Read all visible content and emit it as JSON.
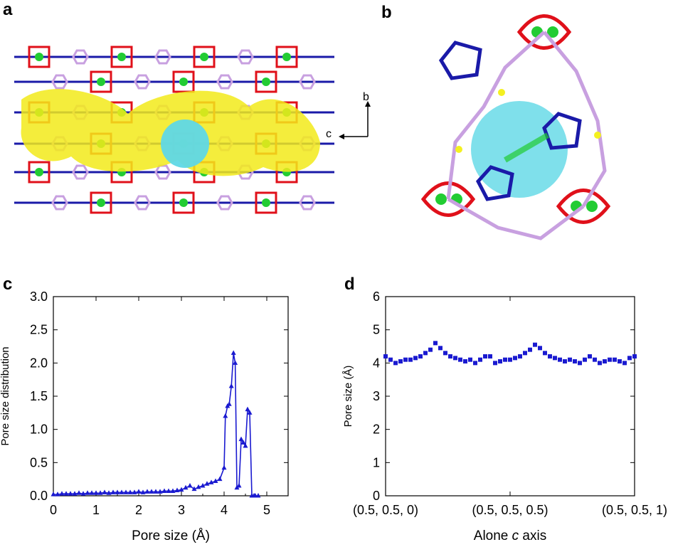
{
  "panels": {
    "a": {
      "label": "a",
      "axes": {
        "b": "b",
        "c": "c"
      }
    },
    "b": {
      "label": "b"
    },
    "c": {
      "label": "c"
    },
    "d": {
      "label": "d"
    }
  },
  "colors": {
    "series": "#1a1ad0",
    "channel_yellow": "#f2ea1a",
    "pore_sphere": "#5fd8e6",
    "oxygen": "#e0101a",
    "metal": "#22cc33",
    "nitrogen": "#1a1aa8",
    "carbon": "#c8a0e0",
    "hydrogen": "#f4f020"
  },
  "chart_data": [
    {
      "panel": "c",
      "type": "line",
      "xlabel": "Pore size (Å)",
      "ylabel": "Pore size distribution",
      "xlim": [
        0,
        5.5
      ],
      "ylim": [
        0,
        3.0
      ],
      "xticks": [
        "0",
        "1",
        "2",
        "3",
        "4",
        "5"
      ],
      "yticks": [
        "0.0",
        "0.5",
        "1.0",
        "1.5",
        "2.0",
        "2.5",
        "3.0"
      ],
      "x": [
        0.0,
        0.1,
        0.2,
        0.3,
        0.4,
        0.5,
        0.6,
        0.7,
        0.8,
        0.9,
        1.0,
        1.1,
        1.2,
        1.3,
        1.4,
        1.5,
        1.6,
        1.7,
        1.8,
        1.9,
        2.0,
        2.1,
        2.2,
        2.3,
        2.4,
        2.5,
        2.6,
        2.7,
        2.8,
        2.9,
        3.0,
        3.1,
        3.2,
        3.3,
        3.4,
        3.5,
        3.6,
        3.7,
        3.8,
        3.9,
        4.0,
        4.03,
        4.08,
        4.12,
        4.17,
        4.22,
        4.26,
        4.3,
        4.35,
        4.4,
        4.45,
        4.5,
        4.55,
        4.6,
        4.65,
        4.7,
        4.73,
        4.8
      ],
      "y": [
        0.02,
        0.02,
        0.03,
        0.03,
        0.03,
        0.03,
        0.04,
        0.03,
        0.04,
        0.04,
        0.04,
        0.04,
        0.05,
        0.04,
        0.05,
        0.05,
        0.05,
        0.05,
        0.05,
        0.05,
        0.06,
        0.05,
        0.06,
        0.06,
        0.06,
        0.06,
        0.07,
        0.07,
        0.07,
        0.08,
        0.09,
        0.12,
        0.15,
        0.1,
        0.13,
        0.15,
        0.18,
        0.2,
        0.22,
        0.25,
        0.42,
        1.2,
        1.35,
        1.38,
        1.65,
        2.15,
        2.0,
        0.12,
        0.15,
        0.85,
        0.8,
        0.75,
        1.3,
        1.25,
        0.0,
        0.0,
        0.0,
        0.0
      ]
    },
    {
      "panel": "d",
      "type": "scatter",
      "xlabel_prefix": "Alone ",
      "xlabel_italic": "c",
      "xlabel_suffix": " axis",
      "ylabel": "Pore size (Å)",
      "xlim": [
        0,
        1
      ],
      "ylim": [
        0,
        6
      ],
      "xticks": [
        "(0.5, 0.5, 0)",
        "(0.5, 0.5, 0.5)",
        "(0.5, 0.5, 1)"
      ],
      "xtick_values": [
        0,
        0.5,
        1
      ],
      "yticks": [
        "0",
        "1",
        "2",
        "3",
        "4",
        "5",
        "6"
      ],
      "x": [
        0.0,
        0.02,
        0.04,
        0.06,
        0.08,
        0.1,
        0.12,
        0.14,
        0.16,
        0.18,
        0.2,
        0.22,
        0.24,
        0.26,
        0.28,
        0.3,
        0.32,
        0.34,
        0.36,
        0.38,
        0.4,
        0.42,
        0.44,
        0.46,
        0.48,
        0.5,
        0.52,
        0.54,
        0.56,
        0.58,
        0.6,
        0.62,
        0.64,
        0.66,
        0.68,
        0.7,
        0.72,
        0.74,
        0.76,
        0.78,
        0.8,
        0.82,
        0.84,
        0.86,
        0.88,
        0.9,
        0.92,
        0.94,
        0.96,
        0.98,
        1.0
      ],
      "y": [
        4.2,
        4.1,
        4.0,
        4.05,
        4.1,
        4.1,
        4.15,
        4.2,
        4.3,
        4.4,
        4.6,
        4.45,
        4.3,
        4.2,
        4.15,
        4.1,
        4.05,
        4.1,
        4.0,
        4.1,
        4.2,
        4.2,
        4.0,
        4.05,
        4.1,
        4.1,
        4.15,
        4.2,
        4.3,
        4.4,
        4.55,
        4.45,
        4.3,
        4.2,
        4.15,
        4.1,
        4.05,
        4.1,
        4.05,
        4.0,
        4.1,
        4.2,
        4.1,
        4.0,
        4.05,
        4.1,
        4.1,
        4.05,
        4.0,
        4.15,
        4.2
      ]
    }
  ]
}
